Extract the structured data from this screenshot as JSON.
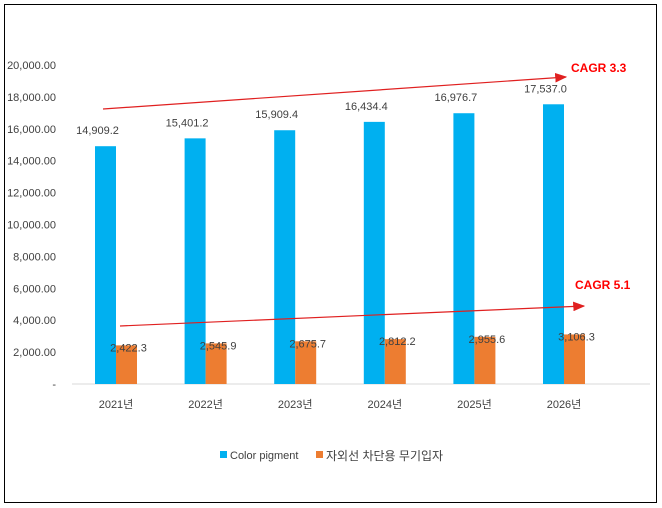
{
  "chart_data": {
    "type": "bar",
    "categories": [
      "2021년",
      "2022년",
      "2023년",
      "2024년",
      "2025년",
      "2026년"
    ],
    "series": [
      {
        "name": "Color pigment",
        "color": "#00B0F0",
        "values": [
          14909.2,
          15401.2,
          15909.4,
          16434.4,
          16976.7,
          17537.0
        ],
        "labels": [
          "14,909.2",
          "15,401.2",
          "15,909.4",
          "16,434.4",
          "16,976.7",
          "17,537.0"
        ]
      },
      {
        "name": "자외선 차단용 무기입자",
        "color": "#ED7D31",
        "values": [
          2422.3,
          2545.9,
          2675.7,
          2812.2,
          2955.6,
          3106.3
        ],
        "labels": [
          "2,422.3",
          "2,545.9",
          "2,675.7",
          "2,812.2",
          "2,955.6",
          "3,106.3"
        ]
      }
    ],
    "ylim": [
      0,
      20000
    ],
    "yticks": [
      0,
      2000,
      4000,
      6000,
      8000,
      10000,
      12000,
      14000,
      16000,
      18000,
      20000
    ],
    "ytick_labels": [
      "-",
      "2,000.00",
      "4,000.00",
      "6,000.00",
      "8,000.00",
      "10,000.00",
      "12,000.00",
      "14,000.00",
      "16,000.00",
      "18,000.00",
      "20,000.00"
    ],
    "grid": false,
    "legend_position": "bottom",
    "annotations": [
      {
        "text": "CAGR 3.3",
        "color": "#FF0000",
        "series": "Color pigment"
      },
      {
        "text": "CAGR 5.1",
        "color": "#FF0000",
        "series": "자외선 차단용 무기입자"
      }
    ]
  }
}
